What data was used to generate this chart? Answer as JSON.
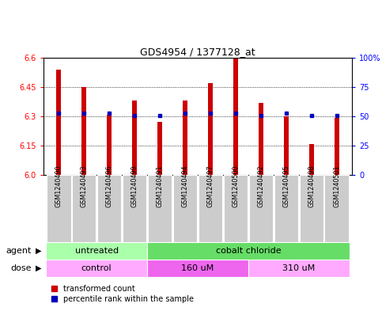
{
  "title": "GDS4954 / 1377128_at",
  "samples": [
    "GSM1240490",
    "GSM1240493",
    "GSM1240496",
    "GSM1240499",
    "GSM1240491",
    "GSM1240494",
    "GSM1240497",
    "GSM1240500",
    "GSM1240492",
    "GSM1240495",
    "GSM1240498",
    "GSM1240501"
  ],
  "red_values": [
    6.54,
    6.45,
    6.31,
    6.38,
    6.27,
    6.38,
    6.47,
    6.6,
    6.37,
    6.3,
    6.16,
    6.29
  ],
  "blue_values": [
    6.315,
    6.315,
    6.315,
    6.305,
    6.305,
    6.315,
    6.315,
    6.315,
    6.305,
    6.315,
    6.305,
    6.305
  ],
  "y_min": 6.0,
  "y_max": 6.6,
  "y_ticks": [
    6.0,
    6.15,
    6.3,
    6.45,
    6.6
  ],
  "y_right_ticks": [
    0,
    25,
    50,
    75,
    100
  ],
  "y_right_labels": [
    "0",
    "25",
    "50",
    "75",
    "100%"
  ],
  "agent_labels": [
    {
      "text": "untreated",
      "start": 0,
      "end": 4,
      "color": "#aaffaa"
    },
    {
      "text": "cobalt chloride",
      "start": 4,
      "end": 12,
      "color": "#66dd66"
    }
  ],
  "dose_labels": [
    {
      "text": "control",
      "start": 0,
      "end": 4,
      "color": "#ffaaff"
    },
    {
      "text": "160 uM",
      "start": 4,
      "end": 8,
      "color": "#ee66ee"
    },
    {
      "text": "310 uM",
      "start": 8,
      "end": 12,
      "color": "#ffaaff"
    }
  ],
  "bar_color": "#cc0000",
  "blue_color": "#0000bb",
  "sample_bg": "#cccccc",
  "legend_red": "transformed count",
  "legend_blue": "percentile rank within the sample",
  "bar_width": 0.18
}
